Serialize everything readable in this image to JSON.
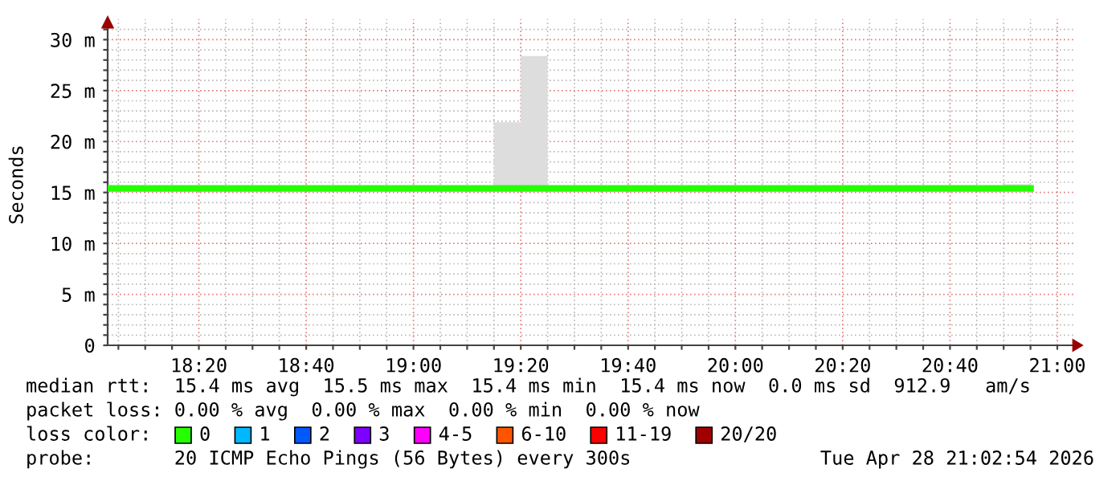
{
  "chart_data": {
    "type": "line",
    "ylabel": "Seconds",
    "legend_title": "loss color:",
    "legend": "bottom",
    "grid": true,
    "x": [
      18.05,
      19.25,
      19.3333,
      19.3333,
      19.4167,
      19.4167,
      20.8333,
      20.9167
    ],
    "xlim": [
      18.05,
      21.05
    ],
    "xticks": [
      {
        "value": 18.0833,
        "label": null
      },
      {
        "value": 18.1667,
        "label": null
      },
      {
        "value": 18.25,
        "label": null
      },
      {
        "value": 18.3333,
        "label": "18:20"
      },
      {
        "value": 18.4167,
        "label": null
      },
      {
        "value": 18.5,
        "label": null
      },
      {
        "value": 18.5833,
        "label": null
      },
      {
        "value": 18.6667,
        "label": "18:40"
      },
      {
        "value": 18.75,
        "label": null
      },
      {
        "value": 18.8333,
        "label": null
      },
      {
        "value": 18.9167,
        "label": null
      },
      {
        "value": 19.0,
        "label": "19:00"
      },
      {
        "value": 19.0833,
        "label": null
      },
      {
        "value": 19.1667,
        "label": null
      },
      {
        "value": 19.25,
        "label": null
      },
      {
        "value": 19.3333,
        "label": "19:20"
      },
      {
        "value": 19.4167,
        "label": null
      },
      {
        "value": 19.5,
        "label": null
      },
      {
        "value": 19.5833,
        "label": null
      },
      {
        "value": 19.6667,
        "label": "19:40"
      },
      {
        "value": 19.75,
        "label": null
      },
      {
        "value": 19.8333,
        "label": null
      },
      {
        "value": 19.9167,
        "label": null
      },
      {
        "value": 20.0,
        "label": "20:00"
      },
      {
        "value": 20.0833,
        "label": null
      },
      {
        "value": 20.1667,
        "label": null
      },
      {
        "value": 20.25,
        "label": null
      },
      {
        "value": 20.3333,
        "label": "20:20"
      },
      {
        "value": 20.4167,
        "label": null
      },
      {
        "value": 20.5,
        "label": null
      },
      {
        "value": 20.5833,
        "label": null
      },
      {
        "value": 20.6667,
        "label": "20:40"
      },
      {
        "value": 20.75,
        "label": null
      },
      {
        "value": 20.8333,
        "label": null
      },
      {
        "value": 20.9167,
        "label": null
      },
      {
        "value": 21.0,
        "label": "21:00"
      }
    ],
    "ylim": [
      0,
      32
    ],
    "yticks": [
      0,
      {
        "value": 1,
        "label": null
      },
      {
        "value": 2,
        "label": null
      },
      {
        "value": 3,
        "label": null
      },
      {
        "value": 4,
        "label": null
      },
      {
        "value": 5,
        "label": "5 m"
      },
      {
        "value": 6,
        "label": null
      },
      {
        "value": 7,
        "label": null
      },
      {
        "value": 8,
        "label": null
      },
      {
        "value": 9,
        "label": null
      },
      {
        "value": 10,
        "label": "10 m"
      },
      {
        "value": 11,
        "label": null
      },
      {
        "value": 12,
        "label": null
      },
      {
        "value": 13,
        "label": null
      },
      {
        "value": 14,
        "label": null
      },
      {
        "value": 15,
        "label": "15 m"
      },
      {
        "value": 16,
        "label": null
      },
      {
        "value": 17,
        "label": null
      },
      {
        "value": 18,
        "label": null
      },
      {
        "value": 19,
        "label": null
      },
      {
        "value": 20,
        "label": "20 m"
      },
      {
        "value": 21,
        "label": null
      },
      {
        "value": 22,
        "label": null
      },
      {
        "value": 23,
        "label": null
      },
      {
        "value": 24,
        "label": null
      },
      {
        "value": 25,
        "label": "25 m"
      },
      {
        "value": 26,
        "label": null
      },
      {
        "value": 27,
        "label": null
      },
      {
        "value": 28,
        "label": null
      },
      {
        "value": 29,
        "label": null
      },
      {
        "value": 30,
        "label": "30 m"
      },
      {
        "value": 31,
        "label": null
      }
    ],
    "series": [
      {
        "name": "0",
        "color": "#26ff00",
        "values": [
          15.4,
          15.4,
          15.4,
          15.4,
          15.4,
          15.4,
          15.4,
          15.4
        ],
        "lower": [
          null,
          15.5,
          15.5,
          15.5,
          15.5,
          null,
          15.5,
          15.5
        ],
        "upper": [
          null,
          21.9,
          21.9,
          28.4,
          28.4,
          null,
          15.8,
          15.8
        ]
      },
      {
        "name": "1",
        "color": "#00b8ff",
        "values": [
          null,
          null,
          null,
          null,
          null,
          null,
          null,
          null
        ]
      },
      {
        "name": "2",
        "color": "#0059ff",
        "values": [
          null,
          null,
          null,
          null,
          null,
          null,
          null,
          null
        ]
      },
      {
        "name": "3",
        "color": "#7e00ff",
        "values": [
          null,
          null,
          null,
          null,
          null,
          null,
          null,
          null
        ]
      },
      {
        "name": "4-5",
        "color": "#ff00ff",
        "values": [
          null,
          null,
          null,
          null,
          null,
          null,
          null,
          null
        ]
      },
      {
        "name": "6-10",
        "color": "#ff5500",
        "values": [
          null,
          null,
          null,
          null,
          null,
          null,
          null,
          null
        ]
      },
      {
        "name": "11-19",
        "color": "#ff0000",
        "values": [
          null,
          null,
          null,
          null,
          null,
          null,
          null,
          null
        ]
      },
      {
        "name": "20/20",
        "color": "#a10000",
        "values": [
          null,
          null,
          null,
          null,
          null,
          null,
          null,
          null
        ]
      }
    ],
    "annotations": [
      "median rtt:  15.4 ms avg  15.5 ms max  15.4 ms min  15.4 ms now  0.0 ms sd  912.9   am/s",
      "packet loss: 0.00 % avg  0.00 % max  0.00 % min  0.00 % now",
      "probe:       20 ICMP Echo Pings (56 Bytes) every 300s",
      "Tue Apr 28 21:02:54 2026"
    ]
  }
}
